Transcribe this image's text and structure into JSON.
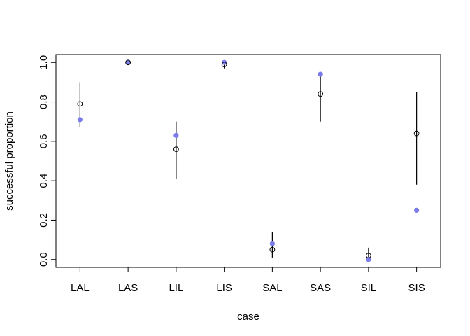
{
  "chart_data": {
    "type": "scatter",
    "title": "",
    "xlabel": "case",
    "ylabel": "successful proportion",
    "categories": [
      "LAL",
      "LAS",
      "LIL",
      "LIS",
      "SAL",
      "SAS",
      "SIL",
      "SIS"
    ],
    "ylim": [
      -0.04,
      1.04
    ],
    "yticks": [
      "0.0",
      "0.2",
      "0.4",
      "0.6",
      "0.8",
      "1.0"
    ],
    "ytick_values": [
      0,
      0.2,
      0.4,
      0.6,
      0.8,
      1.0
    ],
    "grid": false,
    "legend": "none",
    "series": [
      {
        "marker": "filled-circle",
        "color": "#7b7bea",
        "values": [
          0.71,
          1.0,
          0.63,
          1.0,
          0.08,
          0.94,
          0.0,
          0.25
        ]
      },
      {
        "marker": "open-circle",
        "color": "#000000",
        "values": [
          0.79,
          1.0,
          0.56,
          0.99,
          0.05,
          0.84,
          0.02,
          0.64
        ],
        "interval_low": [
          0.67,
          0.99,
          0.41,
          0.97,
          0.01,
          0.7,
          0.0,
          0.38
        ],
        "interval_high": [
          0.9,
          1.0,
          0.7,
          1.0,
          0.14,
          0.94,
          0.06,
          0.85
        ]
      }
    ]
  }
}
